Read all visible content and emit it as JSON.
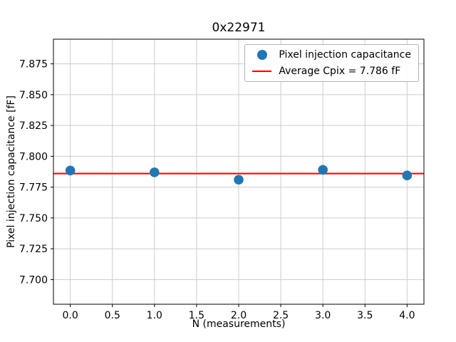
{
  "chart_data": {
    "type": "scatter",
    "title": "0x22971",
    "xlabel": "N (measurements)",
    "ylabel": "Pixel injection capacitance [fF]",
    "x": [
      0,
      1,
      2,
      3,
      4
    ],
    "y": [
      7.7885,
      7.787,
      7.781,
      7.789,
      7.7845
    ],
    "average": 7.786,
    "xlim": [
      -0.2,
      4.2
    ],
    "ylim": [
      7.68,
      7.895
    ],
    "xticks": [
      0.0,
      0.5,
      1.0,
      1.5,
      2.0,
      2.5,
      3.0,
      3.5,
      4.0
    ],
    "xtick_labels": [
      "0.0",
      "0.5",
      "1.0",
      "1.5",
      "2.0",
      "2.5",
      "3.0",
      "3.5",
      "4.0"
    ],
    "yticks": [
      7.7,
      7.725,
      7.75,
      7.775,
      7.8,
      7.825,
      7.85,
      7.875
    ],
    "ytick_labels": [
      "7.700",
      "7.725",
      "7.750",
      "7.775",
      "7.800",
      "7.825",
      "7.850",
      "7.875"
    ],
    "grid": true,
    "legend_position": "upper right",
    "legend": [
      {
        "label": "Pixel injection capacitance",
        "marker": "circle",
        "color": "#1f77b4"
      },
      {
        "label": "Average Cpix = 7.786 fF",
        "marker": "line",
        "color": "#ff0000"
      }
    ],
    "marker_color": "#1f77b4",
    "marker_radius_px": 6.8,
    "line_color": "#ff0000",
    "grid_color": "#cccccc",
    "frame_color": "#000000",
    "background_color": "#ffffff"
  }
}
